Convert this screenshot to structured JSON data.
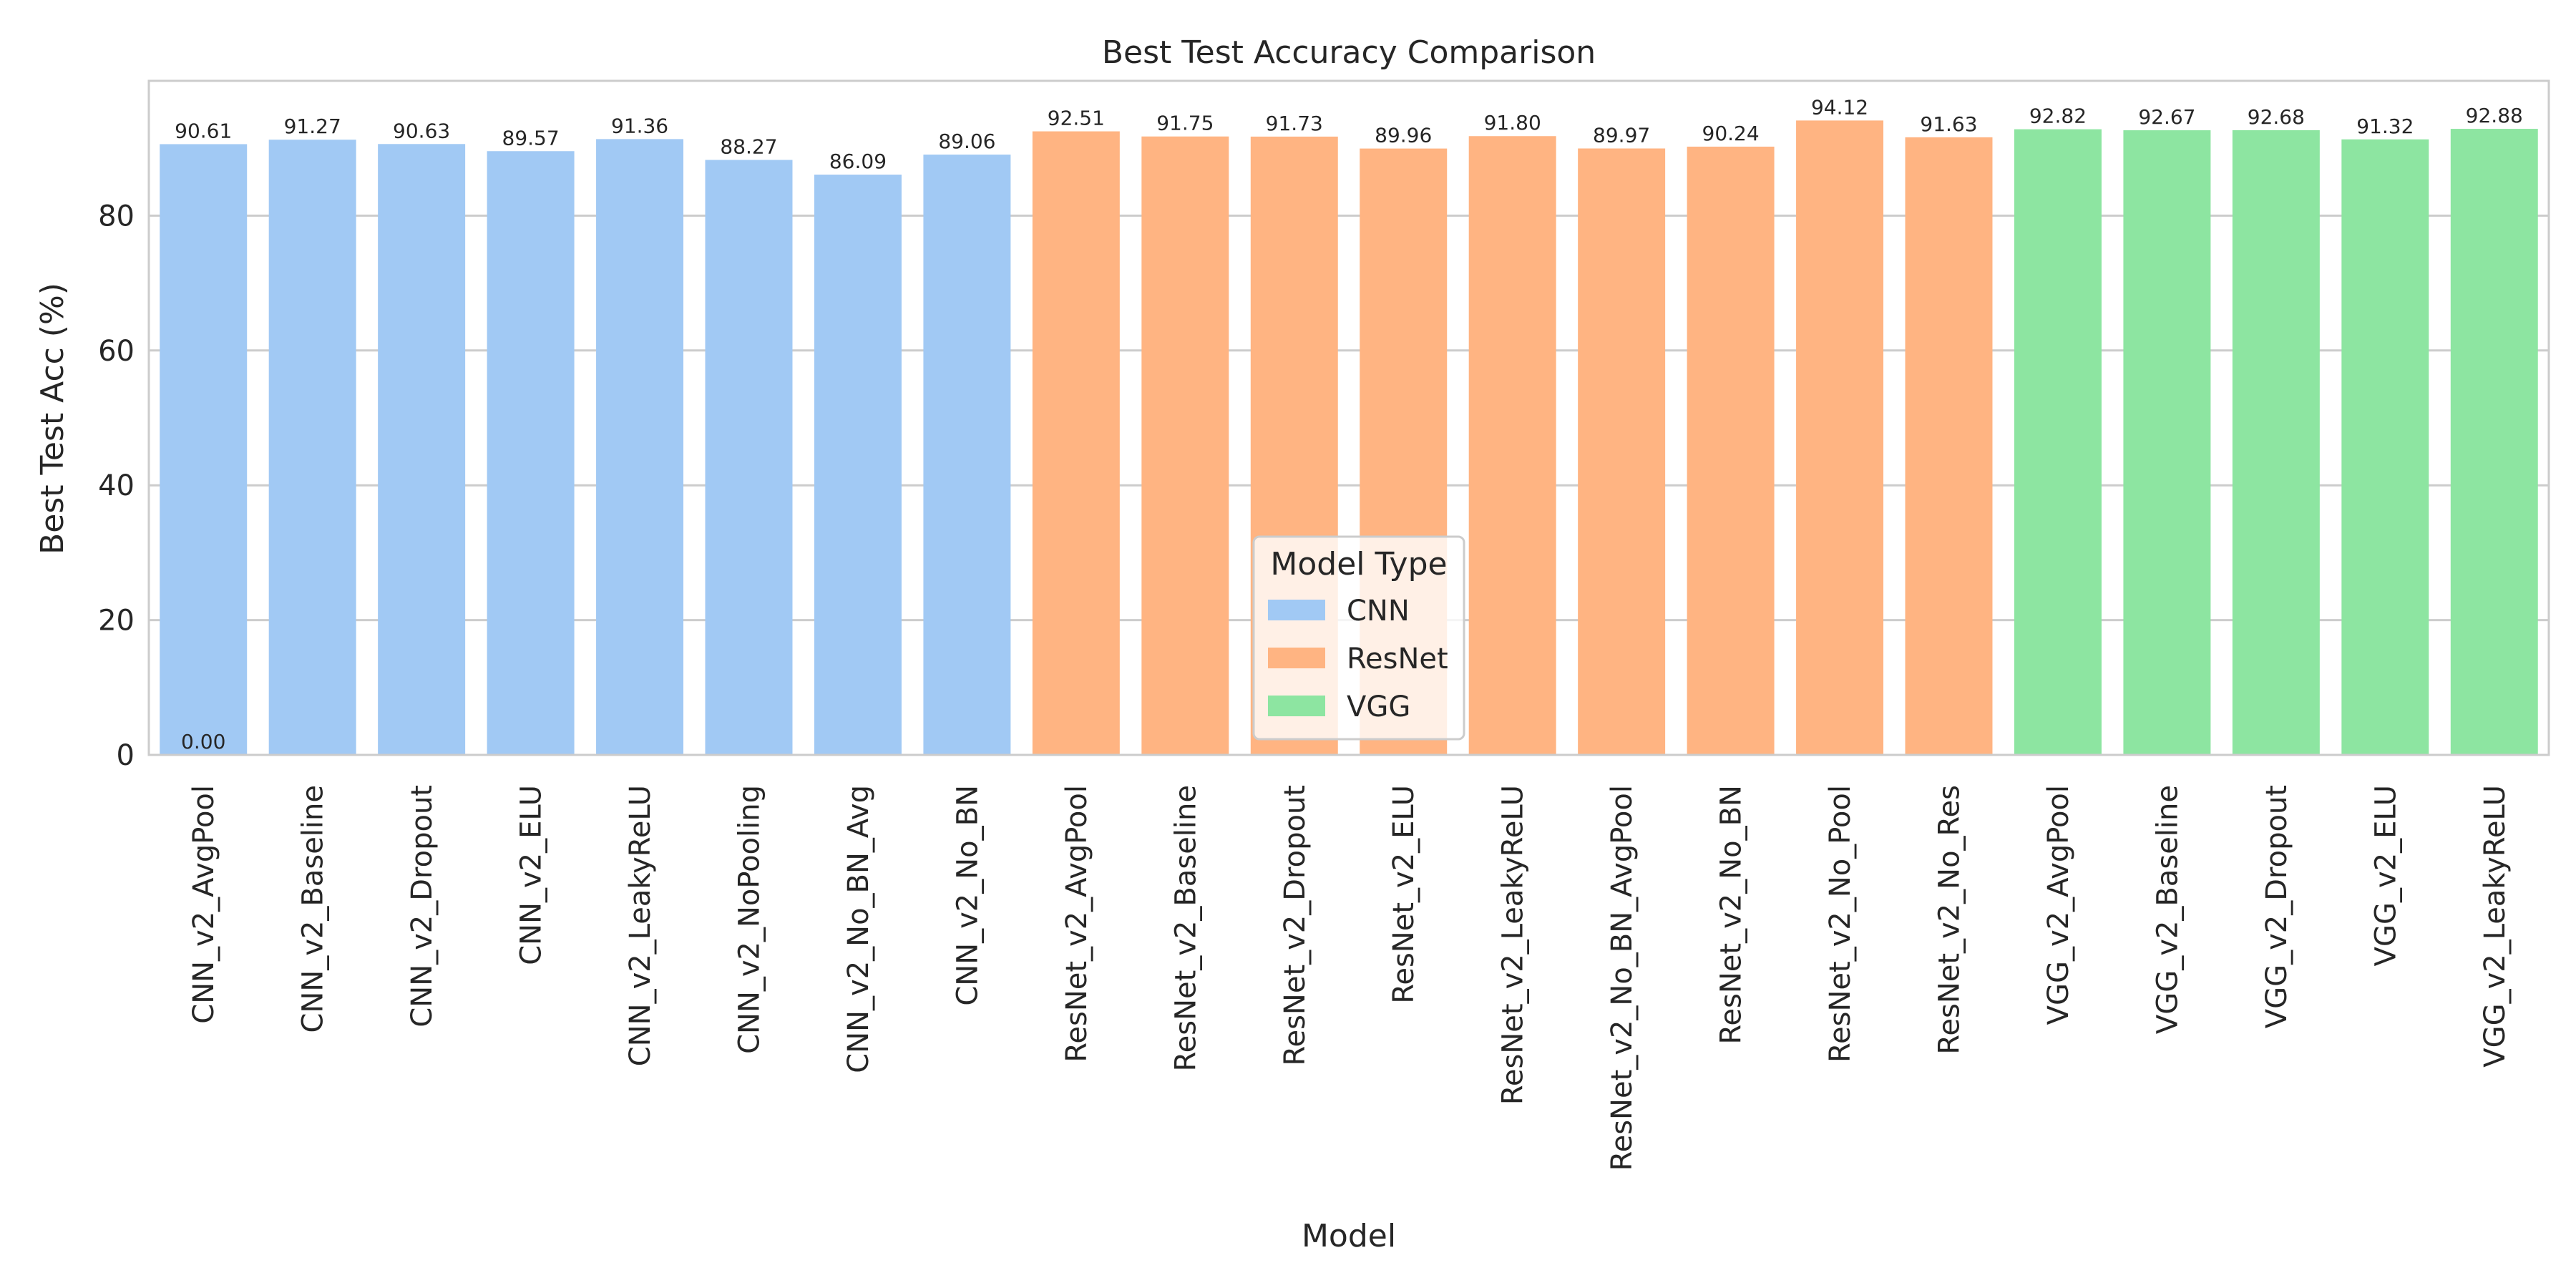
{
  "chart_data": {
    "type": "bar",
    "title": "Best Test Accuracy Comparison",
    "xlabel": "Model",
    "ylabel": "Best Test Acc (%)",
    "ylim": [
      0,
      100
    ],
    "yticks": [
      0,
      20,
      40,
      60,
      80
    ],
    "grid": "horizontal",
    "legend": {
      "title": "Model Type",
      "placement": "lower-center",
      "entries": [
        {
          "name": "CNN",
          "color": "#a1c9f4"
        },
        {
          "name": "ResNet",
          "color": "#ffb482"
        },
        {
          "name": "VGG",
          "color": "#8de5a1"
        }
      ]
    },
    "categories": [
      "CNN_v2_AvgPool",
      "CNN_v2_Baseline",
      "CNN_v2_Dropout",
      "CNN_v2_ELU",
      "CNN_v2_LeakyReLU",
      "CNN_v2_NoPooling",
      "CNN_v2_No_BN_Avg",
      "CNN_v2_No_BN",
      "ResNet_v2_AvgPool",
      "ResNet_v2_Baseline",
      "ResNet_v2_Dropout",
      "ResNet_v2_ELU",
      "ResNet_v2_LeakyReLU",
      "ResNet_v2_No_BN_AvgPool",
      "ResNet_v2_No_BN",
      "ResNet_v2_No_Pool",
      "ResNet_v2_No_Res",
      "VGG_v2_AvgPool",
      "VGG_v2_Baseline",
      "VGG_v2_Dropout",
      "VGG_v2_ELU",
      "VGG_v2_LeakyReLU"
    ],
    "groups": [
      "CNN",
      "CNN",
      "CNN",
      "CNN",
      "CNN",
      "CNN",
      "CNN",
      "CNN",
      "ResNet",
      "ResNet",
      "ResNet",
      "ResNet",
      "ResNet",
      "ResNet",
      "ResNet",
      "ResNet",
      "ResNet",
      "VGG",
      "VGG",
      "VGG",
      "VGG",
      "VGG"
    ],
    "values": [
      90.61,
      91.27,
      90.63,
      89.57,
      91.36,
      88.27,
      86.09,
      89.06,
      92.51,
      91.75,
      91.73,
      89.96,
      91.8,
      89.97,
      90.24,
      94.12,
      91.63,
      92.82,
      92.67,
      92.68,
      91.32,
      92.88
    ],
    "data_labels": [
      "90.61",
      "91.27",
      "90.63",
      "89.57",
      "91.36",
      "88.27",
      "86.09",
      "89.06",
      "92.51",
      "91.75",
      "91.73",
      "89.96",
      "91.80",
      "89.97",
      "90.24",
      "94.12",
      "91.63",
      "92.82",
      "92.67",
      "92.68",
      "91.32",
      "92.88"
    ],
    "annotations": [
      {
        "category": "CNN_v2_AvgPool",
        "text": "0.00",
        "y": 0
      }
    ]
  }
}
